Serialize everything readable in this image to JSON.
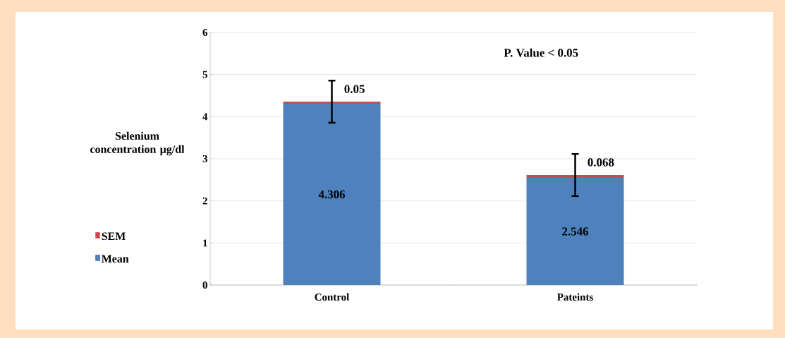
{
  "chart_data": {
    "type": "bar",
    "stacked": true,
    "ylabel": "Selenium concentration µg/dl",
    "categories": [
      "Control",
      "Pateints"
    ],
    "series": [
      {
        "name": "Mean",
        "color": "#4f81bd",
        "values": [
          4.306,
          2.546
        ]
      },
      {
        "name": "SEM",
        "color": "#c0504d",
        "values": [
          0.05,
          0.068
        ],
        "errors": [
          0.5,
          0.5
        ]
      }
    ],
    "data_labels": true,
    "ylim": [
      0,
      6
    ],
    "yticks": [
      0,
      1,
      2,
      3,
      4,
      5,
      6
    ],
    "grid": "y",
    "legend": "left",
    "annotations": [
      "P. Value < 0.05"
    ]
  }
}
